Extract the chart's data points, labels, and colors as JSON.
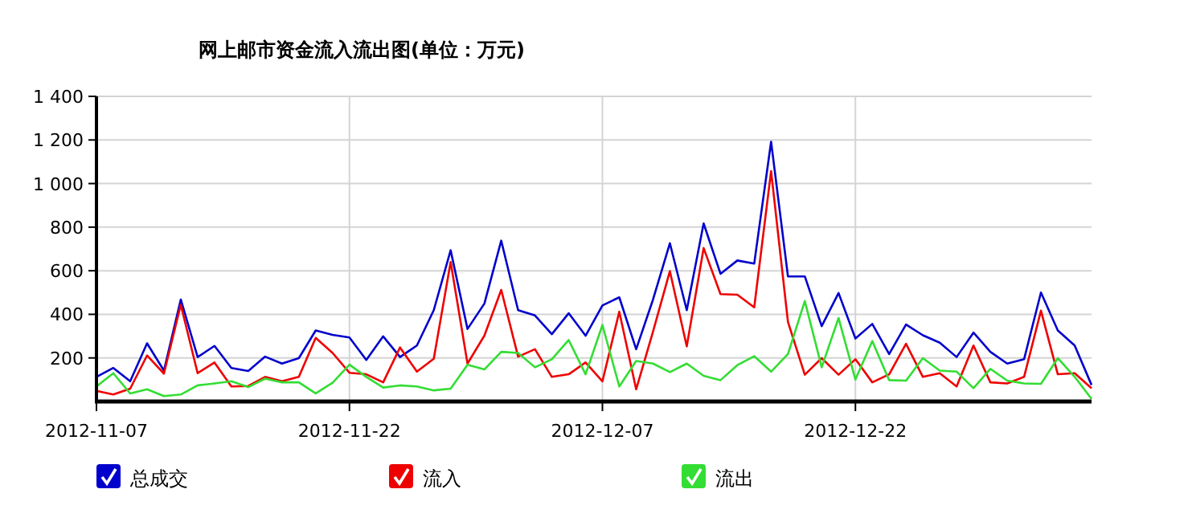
{
  "chart_data": {
    "type": "line",
    "title": "网上邮市资金流入流出图(单位：万元)",
    "x": [
      "2012-11-07",
      "2012-11-08",
      "2012-11-09",
      "2012-11-10",
      "2012-11-11",
      "2012-11-12",
      "2012-11-13",
      "2012-11-14",
      "2012-11-15",
      "2012-11-16",
      "2012-11-17",
      "2012-11-18",
      "2012-11-19",
      "2012-11-20",
      "2012-11-21",
      "2012-11-22",
      "2012-11-23",
      "2012-11-24",
      "2012-11-25",
      "2012-11-26",
      "2012-11-27",
      "2012-11-28",
      "2012-11-29",
      "2012-11-30",
      "2012-12-01",
      "2012-12-02",
      "2012-12-03",
      "2012-12-04",
      "2012-12-05",
      "2012-12-06",
      "2012-12-07",
      "2012-12-08",
      "2012-12-09",
      "2012-12-10",
      "2012-12-11",
      "2012-12-12",
      "2012-12-13",
      "2012-12-14",
      "2012-12-15",
      "2012-12-16",
      "2012-12-17",
      "2012-12-18",
      "2012-12-19",
      "2012-12-20",
      "2012-12-21",
      "2012-12-22",
      "2012-12-23",
      "2012-12-24",
      "2012-12-25",
      "2012-12-26",
      "2012-12-27",
      "2012-12-28",
      "2012-12-29",
      "2012-12-30",
      "2012-12-31",
      "2013-01-01",
      "2013-01-02",
      "2013-01-03",
      "2013-01-04",
      "2013-01-05"
    ],
    "series": [
      {
        "name": "总成交",
        "color": "#0000cc",
        "values": [
          113,
          154,
          93,
          267,
          142,
          468,
          204,
          255,
          154,
          140,
          206,
          174,
          199,
          326,
          306,
          294,
          191,
          299,
          204,
          257,
          419,
          694,
          333,
          449,
          738,
          419,
          395,
          309,
          405,
          302,
          441,
          478,
          240,
          468,
          726,
          419,
          817,
          586,
          647,
          633,
          1192,
          574,
          574,
          346,
          498,
          289,
          356,
          218,
          353,
          304,
          270,
          204,
          316,
          228,
          174,
          194,
          500,
          326,
          257,
          76
        ]
      },
      {
        "name": "流入",
        "color": "#ee0000",
        "values": [
          49,
          32,
          59,
          211,
          128,
          444,
          130,
          179,
          69,
          71,
          113,
          93,
          113,
          292,
          223,
          132,
          125,
          88,
          248,
          137,
          196,
          640,
          174,
          302,
          512,
          206,
          240,
          113,
          125,
          179,
          93,
          412,
          56,
          321,
          598,
          253,
          704,
          493,
          490,
          432,
          1057,
          365,
          123,
          199,
          123,
          194,
          88,
          125,
          265,
          113,
          130,
          69,
          257,
          88,
          83,
          113,
          417,
          125,
          130,
          61
        ]
      },
      {
        "name": "流出",
        "color": "#33dd33",
        "values": [
          69,
          130,
          37,
          56,
          25,
          32,
          74,
          83,
          93,
          66,
          105,
          88,
          88,
          37,
          86,
          169,
          113,
          64,
          74,
          69,
          51,
          59,
          169,
          147,
          228,
          223,
          157,
          194,
          282,
          125,
          351,
          69,
          186,
          174,
          135,
          174,
          118,
          98,
          167,
          208,
          137,
          218,
          461,
          157,
          383,
          101,
          277,
          98,
          96,
          199,
          142,
          137,
          61,
          150,
          96,
          83,
          81,
          199,
          113,
          12
        ]
      }
    ],
    "xlim": [
      "2012-11-07",
      "2013-01-05"
    ],
    "xticks": [
      {
        "value": "2012-11-07",
        "label": "2012-11-07"
      },
      {
        "value": "2012-11-22",
        "label": "2012-11-22"
      },
      {
        "value": "2012-12-07",
        "label": "2012-12-07"
      },
      {
        "value": "2012-12-22",
        "label": "2012-12-22"
      }
    ],
    "ylim": [
      0,
      1400
    ],
    "yticks": [
      200,
      400,
      600,
      800,
      {
        "value": 1000,
        "label": "1 000"
      },
      {
        "value": 1200,
        "label": "1 200"
      },
      {
        "value": 1400,
        "label": "1 400"
      }
    ],
    "grid": true,
    "legend": "bottom",
    "marker": "none",
    "line_style": "solid"
  }
}
